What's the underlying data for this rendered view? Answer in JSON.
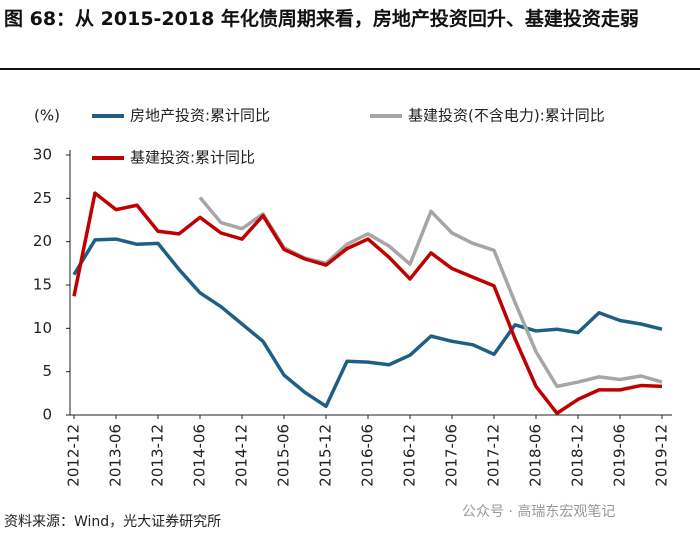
{
  "chart_data": {
    "type": "line",
    "title": "图 68：从 2015-2018 年化债周期来看，房地产投资回升、基建投资走弱",
    "y_label": "(%)",
    "source": "资料来源：Wind，光大证券研究所",
    "watermark": "公众号 · 高瑞东宏观笔记",
    "categories": [
      "2012-12",
      null,
      "2013-06",
      null,
      "2013-12",
      null,
      "2014-06",
      null,
      "2014-12",
      null,
      "2015-06",
      null,
      "2015-12",
      null,
      "2016-06",
      null,
      "2016-12",
      null,
      "2017-06",
      null,
      "2017-12",
      null,
      "2018-06",
      null,
      "2018-12",
      null,
      "2019-06",
      null,
      "2019-12"
    ],
    "series": [
      {
        "name": "房地产投资:累计同比",
        "color": "#1f5f86",
        "values": [
          16.2,
          20.2,
          20.3,
          19.7,
          19.8,
          16.8,
          14.1,
          12.5,
          10.5,
          8.5,
          4.6,
          2.6,
          1.0,
          6.2,
          6.1,
          5.8,
          6.9,
          9.1,
          8.5,
          8.1,
          7.0,
          10.4,
          9.7,
          9.9,
          9.5,
          11.8,
          10.9,
          10.5,
          9.9
        ]
      },
      {
        "name": "基建投资(不含电力):累计同比",
        "color": "#a6a6a6",
        "values": [
          null,
          null,
          null,
          null,
          null,
          null,
          25.1,
          22.2,
          21.5,
          23.2,
          19.3,
          18.1,
          17.5,
          19.7,
          20.9,
          19.5,
          17.4,
          23.5,
          21.0,
          19.8,
          19.0,
          13.0,
          7.3,
          3.3,
          3.8,
          4.4,
          4.1,
          4.5,
          3.8
        ]
      },
      {
        "name": "基建投资:累计同比",
        "color": "#c00000",
        "values": [
          13.7,
          25.6,
          23.7,
          24.2,
          21.2,
          20.9,
          22.8,
          21.0,
          20.3,
          23.0,
          19.1,
          18.0,
          17.3,
          19.2,
          20.3,
          18.2,
          15.7,
          18.7,
          16.9,
          15.9,
          14.9,
          8.8,
          3.3,
          0.2,
          1.8,
          2.9,
          2.9,
          3.4,
          3.3
        ]
      }
    ],
    "ylim": [
      0,
      30
    ],
    "yticks": [
      0,
      5,
      10,
      15,
      20,
      25,
      30
    ],
    "grid": false
  }
}
